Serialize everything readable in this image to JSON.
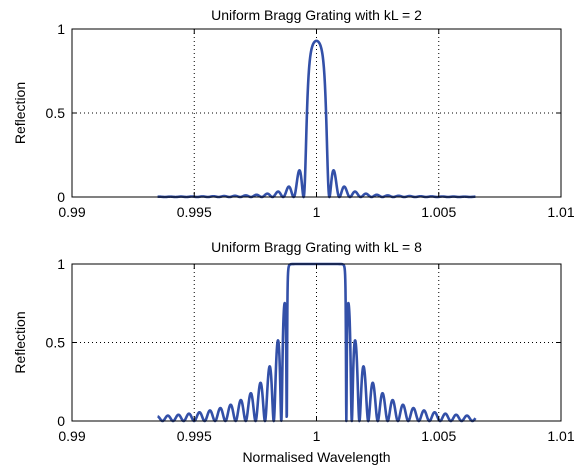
{
  "chart_data": [
    {
      "type": "line",
      "title": "Uniform Bragg Grating with kL = 2",
      "xlabel": "",
      "ylabel": "Reflection",
      "xlim": [
        0.99,
        1.01
      ],
      "ylim": [
        0,
        1
      ],
      "xticks": [
        "0.99",
        "0.995",
        "1",
        "1.005",
        "1.01"
      ],
      "yticks": [
        "0",
        "0.5",
        "1"
      ],
      "grid": "dotted",
      "line_color": "#3350A8",
      "x_range_of_data": [
        0.9935,
        1.0065
      ],
      "kL": 2,
      "peak_reflection": 0.929,
      "series": [
        {
          "x": [
            0.9935,
            0.996,
            0.997,
            0.998,
            0.9985,
            0.999,
            0.9992,
            0.9994,
            0.9996,
            0.9998,
            1.0,
            1.0002,
            1.0004,
            1.0006,
            1.0008,
            1.001,
            1.0015,
            1.002,
            1.003,
            1.004,
            1.0065
          ],
          "y": [
            0.001,
            0.01,
            0.02,
            0.04,
            0.06,
            0.14,
            0.2,
            0.38,
            0.72,
            0.9,
            0.93,
            0.9,
            0.72,
            0.38,
            0.2,
            0.14,
            0.06,
            0.04,
            0.02,
            0.01,
            0.001
          ]
        }
      ]
    },
    {
      "type": "line",
      "title": "Uniform Bragg Grating with kL = 8",
      "xlabel": "Normalised Wavelength",
      "ylabel": "Reflection",
      "xlim": [
        0.99,
        1.01
      ],
      "ylim": [
        0,
        1
      ],
      "xticks": [
        "0.99",
        "0.995",
        "1",
        "1.005",
        "1.01"
      ],
      "yticks": [
        "0",
        "0.5",
        "1"
      ],
      "grid": "dotted",
      "line_color": "#3350A8",
      "x_range_of_data": [
        0.9935,
        1.0065
      ],
      "kL": 8,
      "peak_reflection": 1,
      "series": [
        {
          "x": [
            0.9935,
            0.995,
            0.9965,
            0.9975,
            0.998,
            0.9983,
            0.9985,
            0.9986,
            1.0,
            1.0014,
            1.0015,
            1.0017,
            1.002,
            1.0025,
            1.0035,
            1.005,
            1.0065
          ],
          "y": [
            0.04,
            0.07,
            0.15,
            0.3,
            0.46,
            0.7,
            0.93,
            1,
            1,
            1,
            0.93,
            0.7,
            0.46,
            0.3,
            0.15,
            0.07,
            0.04
          ]
        }
      ]
    }
  ]
}
